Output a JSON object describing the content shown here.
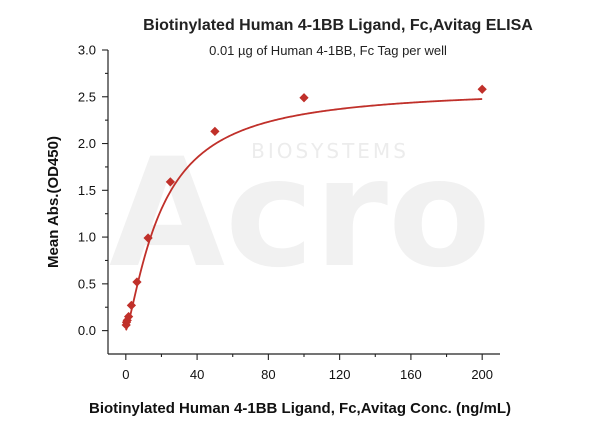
{
  "chart_data": {
    "type": "scatter",
    "title": "Biotinylated Human 4-1BB Ligand, Fc,Avitag ELISA",
    "subtitle": "0.01 µg of Human 4-1BB, Fc Tag per well",
    "xlabel": "Biotinylated Human 4-1BB Ligand, Fc,Avitag Conc. (ng/mL)",
    "ylabel": "Mean Abs.(OD450)",
    "xlim": [
      -10,
      210
    ],
    "ylim": [
      -0.25,
      3.0
    ],
    "x_ticks": [
      0,
      40,
      80,
      120,
      160,
      200
    ],
    "x_tick_labels": [
      "0",
      "40",
      "80",
      "120",
      "160",
      "200"
    ],
    "y_ticks": [
      0.0,
      0.5,
      1.0,
      1.5,
      2.0,
      2.5,
      3.0
    ],
    "y_tick_labels": [
      "0.0",
      "0.5",
      "1.0",
      "1.5",
      "2.0",
      "2.5",
      "3.0"
    ],
    "grid": false,
    "colors": {
      "series": "#c0302a",
      "axis": "#222222"
    },
    "series": [
      {
        "marker": "diamond",
        "x": [
          0.195,
          0.39,
          0.78,
          1.56,
          3.13,
          6.25,
          12.5,
          25,
          50,
          100,
          200
        ],
        "y": [
          0.06,
          0.09,
          0.11,
          0.15,
          0.27,
          0.52,
          0.99,
          1.59,
          2.13,
          2.49,
          2.58
        ],
        "fit": {
          "model": "hill",
          "top": 2.6,
          "ec50": 20,
          "slope": 1.3
        }
      }
    ],
    "watermark": {
      "text": "Acro",
      "subtext": "BIOSYSTEMS"
    }
  }
}
